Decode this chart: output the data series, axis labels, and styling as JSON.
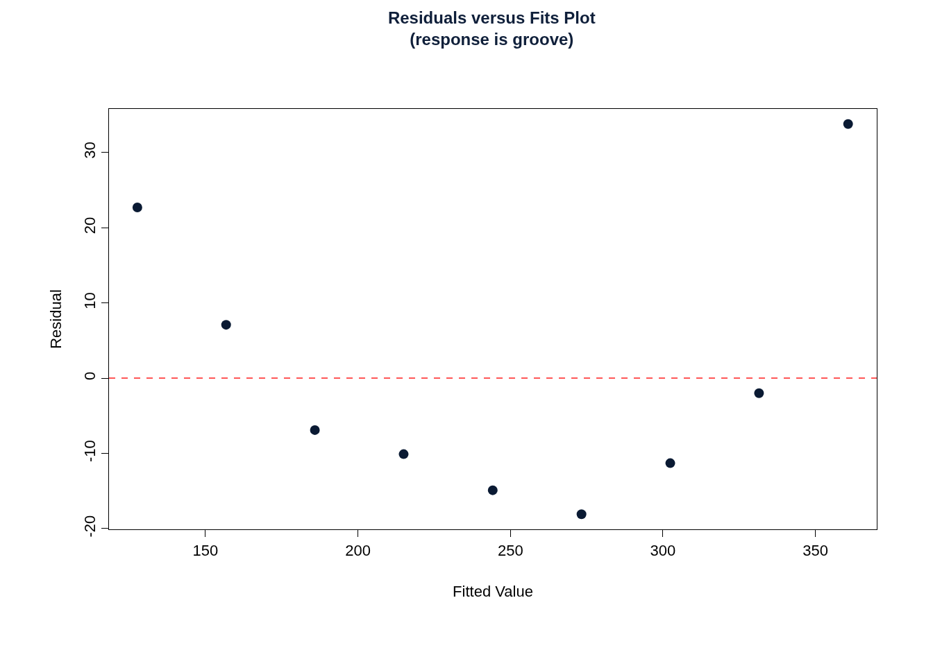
{
  "chart_data": {
    "type": "scatter",
    "title": "Residuals versus Fits Plot",
    "subtitle": "(response is groove)",
    "xlabel": "Fitted Value",
    "ylabel": "Residual",
    "x": [
      127.7,
      156.8,
      185.9,
      215.0,
      244.2,
      273.3,
      302.4,
      331.5,
      360.7
    ],
    "series": [
      {
        "color": "#0a1a33",
        "values": [
          22.7,
          7.1,
          -6.9,
          -10.1,
          -14.9,
          -18.1,
          -11.3,
          -2.0,
          33.8
        ]
      }
    ],
    "xlim": [
      118.4,
      370.1
    ],
    "ylim": [
      -20.1,
      35.8
    ],
    "xticks": [
      150,
      200,
      250,
      300,
      350
    ],
    "yticks": [
      -20,
      -10,
      0,
      10,
      20,
      30
    ],
    "ref_lines": [
      {
        "axis": "y",
        "value": 0,
        "color": "#ff2020",
        "line_style": "dashed"
      }
    ],
    "marker": "circle",
    "grid": false
  }
}
